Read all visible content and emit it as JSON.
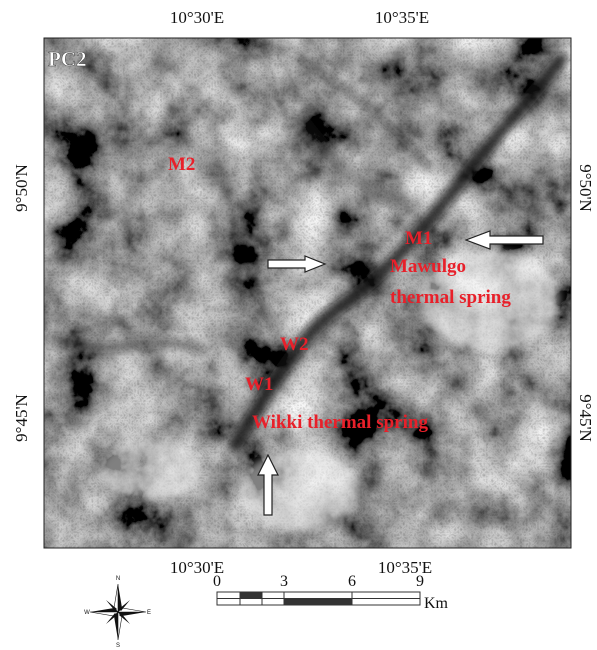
{
  "panel_label": "PC2",
  "graticule": {
    "top": [
      "10°30'E",
      "10°35'E"
    ],
    "bottom": [
      "10°30'E",
      "10°35'E"
    ],
    "left": [
      "9°50'N",
      "9°45'N"
    ],
    "right": [
      "9°50'N",
      "9°45'N"
    ]
  },
  "annotations": [
    {
      "label": "M2"
    },
    {
      "label": "M1"
    },
    {
      "label": [
        "Mawulgo",
        "thermal spring"
      ]
    },
    {
      "label": "W2"
    },
    {
      "label": "W1"
    },
    {
      "label": "Wikki thermal spring"
    }
  ],
  "compass": {
    "n": "N",
    "e": "E",
    "s": "S",
    "w": "W"
  },
  "scale_bar": {
    "ticks": [
      "0",
      "3",
      "6",
      "9"
    ],
    "unit": "Km"
  }
}
